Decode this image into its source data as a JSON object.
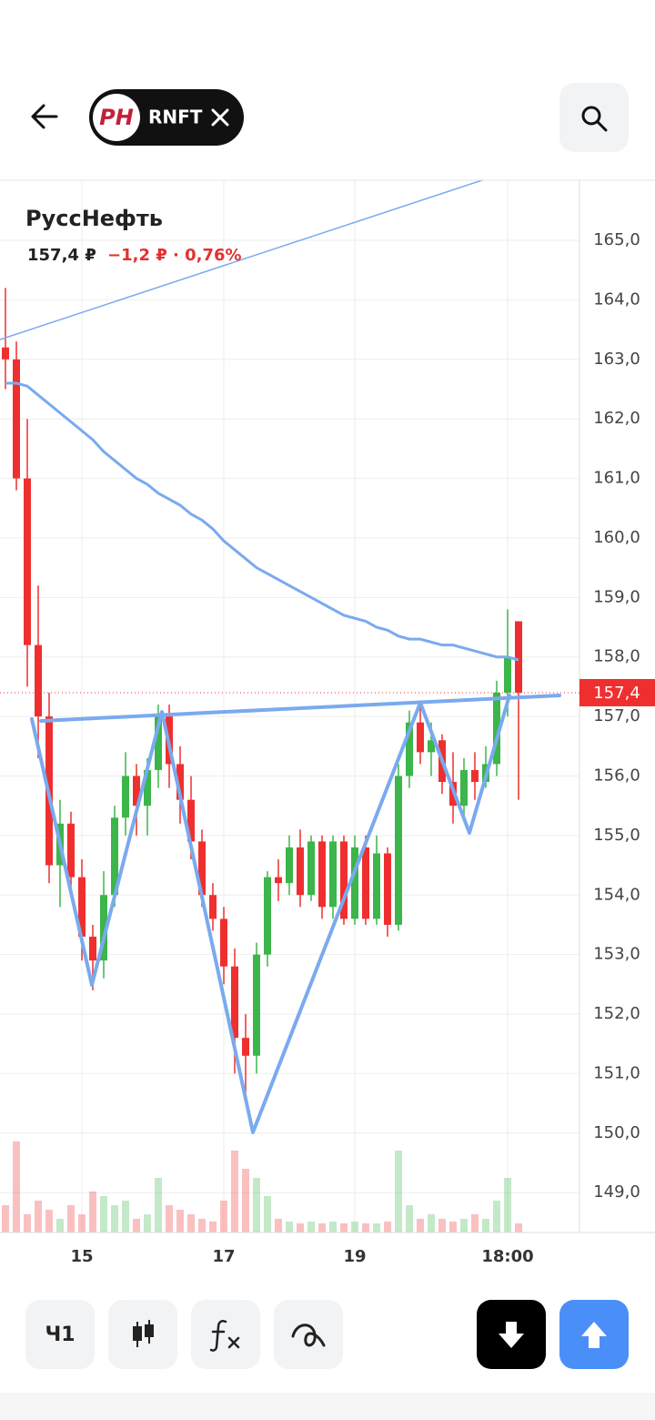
{
  "header": {
    "ticker": "RNFT",
    "logo": "PH"
  },
  "chart_data": {
    "type": "candlestick",
    "title": "РуссНефть",
    "price": "157,4 ₽",
    "change": "−1,2 ₽ · 0,76%",
    "categories": [
      null,
      null,
      null,
      null,
      null,
      null,
      null,
      "15",
      null,
      null,
      null,
      null,
      null,
      null,
      null,
      null,
      null,
      null,
      null,
      null,
      "17",
      null,
      null,
      null,
      null,
      null,
      null,
      null,
      null,
      null,
      null,
      null,
      "19",
      null,
      null,
      null,
      null,
      null,
      null,
      null,
      null,
      null,
      null,
      null,
      null,
      null,
      "18:00",
      null
    ],
    "open": [
      163.2,
      163.0,
      161.0,
      158.2,
      157.0,
      154.5,
      155.2,
      154.3,
      153.3,
      152.9,
      154.0,
      155.3,
      156.0,
      155.5,
      156.1,
      157.0,
      156.2,
      155.6,
      154.9,
      154.0,
      153.6,
      152.8,
      151.6,
      151.3,
      153.0,
      154.3,
      154.2,
      154.8,
      154.0,
      154.9,
      153.8,
      154.9,
      153.6,
      154.8,
      153.6,
      154.7,
      153.5,
      156.0,
      156.9,
      156.4,
      156.6,
      155.9,
      155.5,
      156.1,
      155.9,
      156.2,
      157.4,
      158.6
    ],
    "high": [
      164.2,
      163.3,
      162.0,
      159.2,
      157.4,
      155.6,
      155.4,
      154.6,
      153.5,
      154.4,
      155.5,
      156.4,
      156.2,
      156.3,
      157.2,
      157.2,
      156.5,
      156.0,
      155.1,
      154.2,
      153.8,
      153.1,
      152.0,
      153.2,
      154.4,
      154.6,
      155.0,
      155.1,
      155.0,
      155.0,
      155.0,
      155.0,
      155.0,
      155.0,
      155.0,
      154.8,
      156.2,
      157.1,
      157.2,
      156.9,
      156.7,
      156.4,
      156.3,
      156.4,
      156.5,
      157.6,
      158.8,
      158.6
    ],
    "low": [
      162.5,
      160.8,
      157.5,
      156.3,
      154.2,
      153.8,
      154.0,
      152.9,
      152.4,
      152.6,
      153.8,
      155.0,
      155.0,
      155.0,
      155.8,
      155.8,
      155.2,
      154.6,
      153.8,
      153.4,
      152.5,
      151.0,
      150.5,
      151.0,
      152.8,
      153.9,
      154.0,
      153.8,
      153.9,
      153.6,
      153.6,
      153.5,
      153.5,
      153.5,
      153.5,
      153.3,
      153.4,
      155.8,
      156.2,
      156.0,
      155.7,
      155.2,
      155.3,
      155.6,
      155.8,
      156.0,
      157.0,
      155.6
    ],
    "close": [
      163.0,
      161.0,
      158.2,
      157.0,
      154.5,
      155.2,
      154.3,
      153.3,
      152.9,
      154.0,
      155.3,
      156.0,
      155.5,
      156.1,
      157.0,
      156.2,
      155.6,
      154.9,
      154.0,
      153.6,
      152.8,
      151.6,
      151.3,
      153.0,
      154.3,
      154.2,
      154.8,
      154.0,
      154.9,
      153.8,
      154.9,
      153.6,
      154.8,
      153.6,
      154.7,
      153.5,
      156.0,
      156.9,
      156.4,
      156.6,
      155.9,
      155.5,
      156.1,
      155.9,
      156.2,
      157.4,
      158.0,
      157.4
    ],
    "volume": [
      30,
      100,
      20,
      35,
      25,
      15,
      30,
      20,
      45,
      40,
      30,
      35,
      15,
      20,
      60,
      30,
      25,
      20,
      15,
      12,
      35,
      90,
      70,
      60,
      40,
      15,
      12,
      10,
      12,
      10,
      12,
      10,
      12,
      10,
      10,
      12,
      90,
      30,
      15,
      20,
      15,
      12,
      15,
      20,
      15,
      35,
      60,
      10
    ],
    "up_color": "#3cb54a",
    "down_color": "#ef2f2f",
    "ma": {
      "color": "#7aaaee",
      "values": [
        162.6,
        162.6,
        162.55,
        162.4,
        162.25,
        162.1,
        161.95,
        161.8,
        161.65,
        161.45,
        161.3,
        161.15,
        161.0,
        160.9,
        160.75,
        160.65,
        160.55,
        160.4,
        160.3,
        160.15,
        159.95,
        159.8,
        159.65,
        159.5,
        159.4,
        159.3,
        159.2,
        159.1,
        159.0,
        158.9,
        158.8,
        158.7,
        158.65,
        158.6,
        158.5,
        158.45,
        158.35,
        158.3,
        158.3,
        158.25,
        158.2,
        158.2,
        158.15,
        158.1,
        158.05,
        158.0,
        158.0,
        157.95
      ]
    },
    "last_price": {
      "value": 157.4,
      "label": "157,4"
    },
    "ylim": [
      148.33,
      166.01
    ],
    "yticks": [
      {
        "value": 149,
        "label": "149,0"
      },
      {
        "value": 150,
        "label": "150,0"
      },
      {
        "value": 151,
        "label": "151,0"
      },
      {
        "value": 152,
        "label": "152,0"
      },
      {
        "value": 153,
        "label": "153,0"
      },
      {
        "value": 154,
        "label": "154,0"
      },
      {
        "value": 155,
        "label": "155,0"
      },
      {
        "value": 156,
        "label": "156,0"
      },
      {
        "value": 157,
        "label": "157,0"
      },
      {
        "value": 158,
        "label": "158,0"
      },
      {
        "value": 159,
        "label": "159,0"
      },
      {
        "value": 160,
        "label": "160,0"
      },
      {
        "value": 161,
        "label": "161,0"
      },
      {
        "value": 162,
        "label": "162,0"
      },
      {
        "value": 163,
        "label": "163,0"
      },
      {
        "value": 164,
        "label": "164,0"
      },
      {
        "value": 165,
        "label": "165,0"
      }
    ],
    "grid": true
  },
  "toolbar": {
    "interval": "Ч1"
  }
}
